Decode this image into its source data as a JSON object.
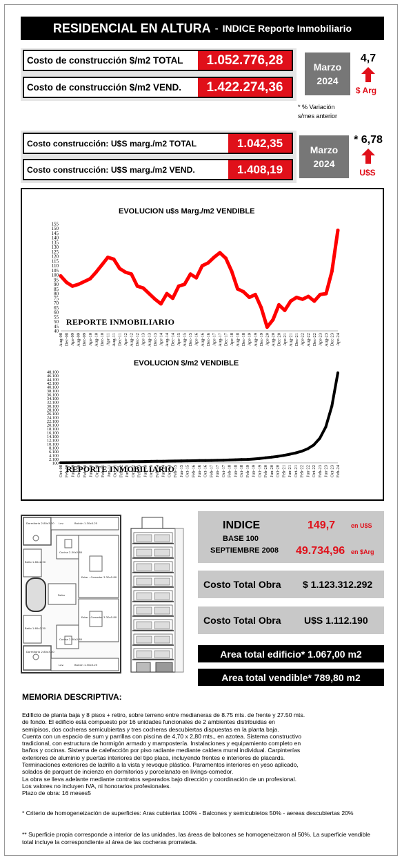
{
  "header": {
    "title": "RESIDENCIAL EN ALTURA",
    "separator": "-",
    "subtitle": "INDICE Reporte Inmobiliario"
  },
  "pesos_block": {
    "rows": [
      {
        "label": "Costo de construcción $/m2 TOTAL",
        "value": "1.052.776,28"
      },
      {
        "label": "Costo de construcción $/m2 VEND.",
        "value": "1.422.274,36"
      }
    ],
    "month": "Marzo",
    "year": "2024",
    "variation": "4,7",
    "currency": "$ Arg",
    "note_line1": "* % Variación",
    "note_line2": "s/mes anterior"
  },
  "usd_block": {
    "rows": [
      {
        "label": "Costo construcción: U$S marg./m2 TOTAL",
        "value": "1.042,35"
      },
      {
        "label": "Costo construcción: U$S marg./m2 VEND.",
        "value": "1.408,19"
      }
    ],
    "month": "Marzo",
    "year": "2024",
    "variation": "* 6,78",
    "currency": "U$S"
  },
  "chart_data": [
    {
      "type": "line",
      "title": "EVOLUCION u$s Marg./m2 VENDIBLE",
      "watermark": "REPORTE INMOBILIARIO",
      "color": "#ff0000",
      "ylim": [
        40,
        155
      ],
      "yticks": [
        40,
        45,
        50,
        55,
        60,
        65,
        70,
        75,
        80,
        85,
        90,
        95,
        100,
        105,
        110,
        115,
        120,
        125,
        130,
        135,
        140,
        145,
        150,
        155
      ],
      "xticks": [
        "Aug-08",
        "Dec-08",
        "Apr-09",
        "Aug-09",
        "Dec-09",
        "Apr-10",
        "Aug-10",
        "Dec-10",
        "Apr-11",
        "Aug-11",
        "Dec-11",
        "Apr-12",
        "Aug-12",
        "Dec-12",
        "Apr-13",
        "Aug-13",
        "Dec-13",
        "Apr-14",
        "Aug-14",
        "Dec-14",
        "Apr-15",
        "Aug-15",
        "Dec-15",
        "Apr-16",
        "Aug-16",
        "Dec-16",
        "Apr-17",
        "Aug-17",
        "Dec-17",
        "Apr-18",
        "Aug-18",
        "Dec-18",
        "Apr-19",
        "Aug-19",
        "Dec-19",
        "Apr-20",
        "Aug-20",
        "Dec-20",
        "Apr-21",
        "Aug-21",
        "Dec-21",
        "Apr-22",
        "Aug-22",
        "Dec-22",
        "Apr-23",
        "Aug-23",
        "Dec-23",
        "Apr-24"
      ],
      "values": [
        99,
        92,
        88,
        90,
        93,
        96,
        103,
        111,
        119,
        117,
        107,
        103,
        101,
        88,
        86,
        80,
        74,
        69,
        80,
        75,
        88,
        90,
        101,
        97,
        110,
        113,
        119,
        124,
        118,
        104,
        85,
        82,
        76,
        79,
        65,
        44,
        52,
        68,
        62,
        72,
        76,
        74,
        77,
        72,
        79,
        80,
        104,
        148
      ]
    },
    {
      "type": "line",
      "title": "EVOLUCION $/m2 VENDIBLE",
      "watermark": "REPORTE INMOBILIARIO",
      "color": "#000000",
      "ylim": [
        100,
        48100
      ],
      "yticks": [
        "100",
        "2.100",
        "4.100",
        "6.100",
        "8.100",
        "10.100",
        "12.100",
        "14.100",
        "16.100",
        "18.100",
        "20.100",
        "22.100",
        "24.100",
        "26.100",
        "28.100",
        "30.100",
        "32.100",
        "34.100",
        "36.100",
        "38.100",
        "40.100",
        "42.100",
        "44.100",
        "46.100",
        "48.100"
      ],
      "xticks": [
        "Oct-08",
        "Feb-09",
        "Jun-09",
        "Oct-09",
        "Feb-10",
        "Jun-10",
        "Oct-10",
        "Feb-11",
        "Jun-11",
        "Oct-11",
        "Feb-12",
        "Jun-12",
        "Oct-12",
        "Feb-13",
        "Jun-13",
        "Oct-13",
        "Feb-14",
        "Jun-14",
        "Oct-14",
        "Feb-15",
        "Jun-15",
        "Oct-15",
        "Feb-16",
        "Jun-16",
        "Oct-16",
        "Feb-17",
        "Jun-17",
        "Oct-17",
        "Feb-18",
        "Jun-18",
        "Oct-18",
        "Feb-19",
        "Jun-19",
        "Oct-19",
        "Feb-20",
        "Jun-20",
        "Oct-20",
        "Feb-21",
        "Jun-21",
        "Oct-21",
        "Feb-22",
        "Jun-22",
        "Oct-22",
        "Feb-23",
        "Jun-23",
        "Oct-23",
        "Feb-24"
      ],
      "values": [
        100,
        150,
        200,
        250,
        300,
        350,
        400,
        450,
        500,
        550,
        600,
        650,
        700,
        750,
        800,
        850,
        900,
        950,
        1000,
        1050,
        1100,
        1150,
        1200,
        1250,
        1300,
        1350,
        1400,
        1500,
        1600,
        1700,
        1800,
        1900,
        2100,
        2400,
        2700,
        3100,
        3500,
        4000,
        4600,
        5300,
        6200,
        7500,
        9500,
        13000,
        19000,
        30000,
        47500
      ]
    }
  ],
  "index_block": {
    "title": "INDICE",
    "base1": "BASE 100",
    "base2": "SEPTIEMBRE 2008",
    "usd_value": "149,7",
    "usd_unit": "en U$S",
    "ars_value": "49.734,96",
    "ars_unit": "en $Arg"
  },
  "costo_total_ars": {
    "label": "Costo Total Obra",
    "value": "$ 1.123.312.292"
  },
  "costo_total_usd": {
    "label": "Costo Total Obra",
    "value": "U$S 1.112.190"
  },
  "area_edificio": "Area total edificio* 1.067,00 m2",
  "area_vendible": "Area total vendible* 789,80 m2",
  "plan_labels": {
    "dormitorio1": "Dormitorio 2.80x3.00",
    "balcon1": "Balcón 1.30x5.25",
    "lav1": "Lav.",
    "cocina1": "Cocina 2.30x2.80",
    "bano1": "Baño 1.60x2.30",
    "estar1": "Estar - Comedor 3.30x5.80",
    "palier": "Palier",
    "estar2": "Estar - Comedor 3.30x5.80",
    "bano2": "Baño 1.60x2.30",
    "cocina2": "Cocina 2.30x2.80",
    "dormitorio2": "Dormitorio 2.80x3.00",
    "lav2": "Lav.",
    "balcon2": "Balcón 1.30x5.25"
  },
  "memoria": {
    "title": "MEMORIA DESCRIPTIVA:",
    "lines": [
      "Edificio de planta baja y 8 pisos + retiro, sobre terreno entre medianeras de 8.75 mts. de frente y 27.50 mts.",
      "de fondo. El edificio está compuesto por 16 unidades funcionales de 2 ambientes distribuidas en",
      "semipisos, dos cocheras semicubiertas y tres cocheras descubiertas dispuestas en la planta baja.",
      "Cuenta con un espacio de sum y parrillas con piscina de 4,70 x 2,80 mts., en azotea. Sistema constructivo",
      "tradicional, con estructura de hormigón armado y mampostería. Instalaciones y equipamiento completo en",
      "baños y cocinas. Sistema de calefacción por piso radiante mediante caldera mural individual. Carpinterías",
      "exteriores de aluminio y puertas interiores del tipo placa, incluyendo frentes e interiores de placards.",
      "Terminaciones exteriores de ladrillo a la vista y revoque plástico. Paramentos interiores en yeso aplicado,",
      "solados de parquet de incienzo en dormitorios y porcelanato en livings-comedor.",
      "La obra se lleva adelante mediante contratos separados bajo dirección y coordinación de un profesional.",
      "Los valores no incluyen IVA, ni honorarios profesionales.",
      "Plazo de obra: 16 meses5"
    ],
    "footnote1": "* Criterio de homogeneización de superficies: Aras cubiertas 100% - Balcones y semicubietos 50% - aereas descubiertas 20%",
    "footnote2": "** Superficie propia corresponde a interior de las unidades, las áreas de balcones se homogeneizaron al 50%. La superficie vendible total incluye la correspondiente al área de las cocheras prorrateda."
  }
}
